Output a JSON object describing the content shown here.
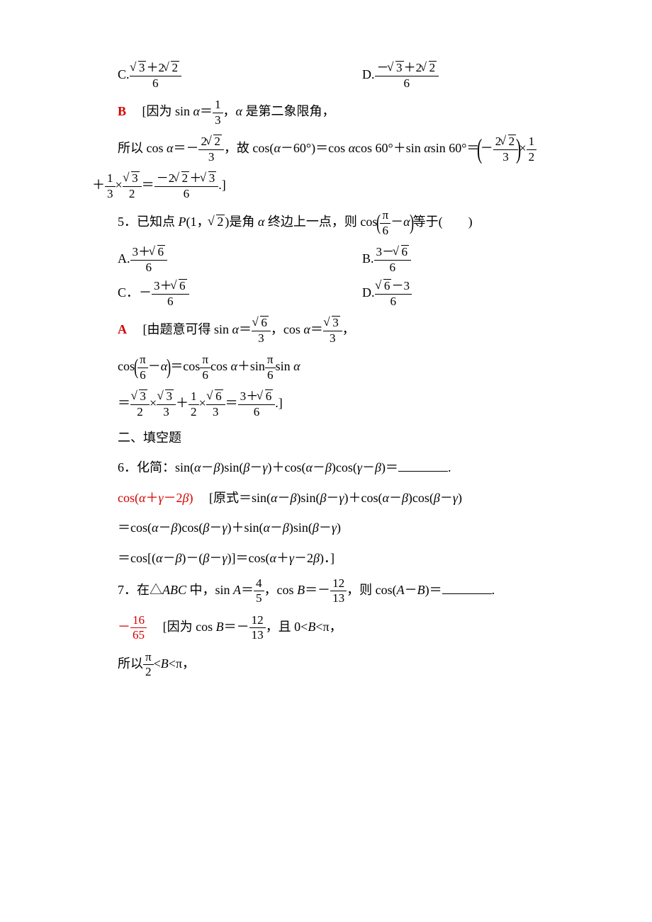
{
  "background_color": "#ffffff",
  "text_color": "#000000",
  "accent_color": "#d40000",
  "base_fontsize_pt": 14,
  "q4_opts": {
    "c_label": "C.",
    "d_label": "D."
  },
  "q4_sol": {
    "letter": "B",
    "open": "[因为 sin ",
    "alpha": "α",
    "eq": "＝",
    "comma1": "，",
    "quad": "α 是第二象限角，",
    "line2a": "所以 cos ",
    "line2b": "＝",
    "neg": "－",
    "line2c": "，故 cos(",
    "minus60": "α－60°)＝cos ",
    "cos60": "cos 60°＋sin ",
    "sin60": "sin 60°＝",
    "times": "×",
    "plus": "＋",
    "end": ".]"
  },
  "q5": {
    "stem_a": "5．已知点 ",
    "P": "P",
    "stem_b": "(1，",
    "stem_c": ")是角 ",
    "stem_d": " 终边上一点，则 cos",
    "stem_e": "等于(　　)",
    "a_label": "A.",
    "b_label": "B.",
    "c_label": "C．",
    "d_label": "D.",
    "c_neg": "－"
  },
  "q5_sol": {
    "letter": "A",
    "open": "[由题意可得 sin ",
    "eq": "＝",
    "comma": "，",
    "cos_txt": "cos ",
    "line2a": "cos",
    "line2b": "＝cos",
    "line2c": "cos ",
    "plus": "＋sin",
    "line2d": "sin ",
    "times": "×",
    "plus2": "＋",
    "end": ".]"
  },
  "sec2": "二、填空题",
  "q6": {
    "stem_a": "6．化简：sin(",
    "ab": "α－β",
    "stem_b": ")sin(",
    "bg": "β－γ",
    "stem_c": ")＋cos(",
    "stem_d": ")cos(",
    "gb": "γ－β",
    "stem_e": ")＝",
    "stem_f": "."
  },
  "q6_sol": {
    "ans": "cos(α＋γ－2β)",
    "open": "[原式＝sin(",
    "a": "α－β",
    "sin": ")sin(",
    "b": "β－γ",
    "pcos": ")＋cos(",
    "pcos2": ")cos(",
    "close": ")",
    "line2": "＝cos(",
    "line3a": "＝cos[(",
    "line3b": ")－(",
    "line3c": ")]＝cos(",
    "agb": "α＋γ－2β",
    "line3d": ")．]"
  },
  "q7": {
    "stem_a": "7．在△",
    "ABC": "ABC",
    "stem_b": " 中，sin ",
    "A": "A",
    "eq": "＝",
    "comma": "，",
    "cosB": "cos ",
    "B": "B",
    "neg": "－",
    "then": "则 cos(",
    "AmB": "A－B",
    "close": ")＝",
    "period": "."
  },
  "q7_sol": {
    "ans_neg": "－",
    "open": "[因为 cos ",
    "eq": "＝",
    "neg": "－",
    "comma": "，",
    "and": "且 0<",
    "lt_pi": "<π，",
    "line2a": "所以",
    "lt": "<",
    "lt2": "<π，"
  },
  "fracs": {
    "s3_p_2s2": {
      "num_parts": [
        "√3",
        "＋",
        "2√2"
      ],
      "den": "6"
    },
    "neg_s3_p_2s2": {
      "num_parts": [
        "－√3",
        "＋",
        "2√2"
      ],
      "den": "6"
    },
    "one_third": {
      "num": "1",
      "den": "3"
    },
    "two_s2_over3": {
      "num": "2√2",
      "den": "3"
    },
    "one_half": {
      "num": "1",
      "den": "2"
    },
    "s3_over2": {
      "num": "√3",
      "den": "2"
    },
    "neg2s2_p_s3_over6": {
      "num": "－2√2＋√3",
      "den": "6"
    },
    "pi_over6": {
      "num": "π",
      "den": "6"
    },
    "three_p_s6_over6": {
      "num": "3＋√6",
      "den": "6"
    },
    "three_m_s6_over6": {
      "num": "3－√6",
      "den": "6"
    },
    "s6_m3_over6": {
      "num": "√6－3",
      "den": "6"
    },
    "s6_over3": {
      "num": "√6",
      "den": "3"
    },
    "s3_over3": {
      "num": "√3",
      "den": "3"
    },
    "four_fifths": {
      "num": "4",
      "den": "5"
    },
    "twelve_13": {
      "num": "12",
      "den": "13"
    },
    "sixteen_65": {
      "num": "16",
      "den": "65"
    },
    "pi_over2": {
      "num": "π",
      "den": "2"
    }
  }
}
